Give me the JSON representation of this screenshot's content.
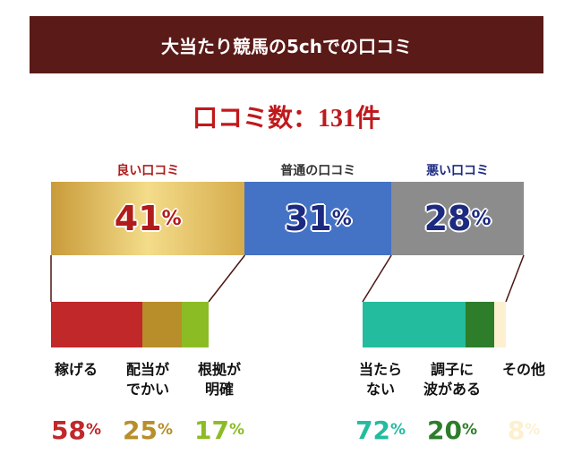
{
  "header": {
    "title": "大当たり競馬の5chでの口コミ"
  },
  "chart_data": {
    "type": "stacked-bar",
    "title": "口コミ数：131件",
    "categories": [
      "良い口コミ",
      "普通の口コミ",
      "悪い口コミ"
    ],
    "values": [
      41,
      31,
      28
    ],
    "value_labels": [
      "41%",
      "31%",
      "28%"
    ],
    "colors": [
      "#e2c064",
      "#4472c4",
      "#8c8c8c"
    ],
    "label_colors": [
      "#b01c1c",
      "#333333",
      "#1c2a80"
    ],
    "breakdowns": [
      {
        "categories": [
          "稼げる",
          "配当が\nでかい",
          "根拠が\n明確"
        ],
        "values": [
          58,
          25,
          17
        ],
        "value_labels": [
          "58%",
          "25%",
          "17%"
        ],
        "colors": [
          "#c0282a",
          "#b88e2a",
          "#8cbc24"
        ]
      },
      null,
      {
        "categories": [
          "当たら\nない",
          "調子に\n波がある",
          "その他"
        ],
        "values": [
          72,
          20,
          8
        ],
        "value_labels": [
          "72%",
          "20%",
          "8%"
        ],
        "colors": [
          "#23bc9e",
          "#2e7d2a",
          "#fdf0d0"
        ]
      }
    ]
  }
}
